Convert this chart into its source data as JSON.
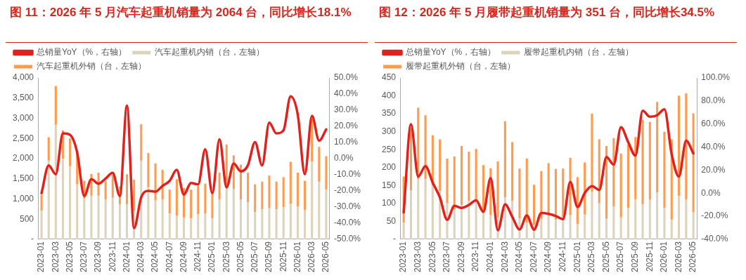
{
  "chart_data": [
    {
      "type": "bar",
      "title": "图 11：2026 年 5 月汽车起重机销量为 2064 台，同比增长18.1%",
      "stacked": true,
      "legend": "top",
      "grid": false,
      "marker": "none",
      "categories": [
        "2023-01",
        null,
        "2023-03",
        null,
        "2023-05",
        null,
        "2023-07",
        null,
        "2023-09",
        null,
        "2023-11",
        null,
        "2024-01",
        null,
        "2024-03",
        null,
        "2024-05",
        null,
        "2024-07",
        null,
        "2024-09",
        null,
        "2024-11",
        null,
        "2025-01",
        null,
        "2025-03",
        null,
        "2025-05",
        null,
        "2025-07",
        null,
        "2025-09",
        null,
        "2025-11",
        null,
        "2026-01",
        null,
        "2026-03",
        null,
        "2026-05"
      ],
      "ylim": [
        0,
        4000
      ],
      "yticks": [
        {
          "value": 0,
          "label": "-"
        },
        500,
        {
          "value": 1000,
          "label": "1,000"
        },
        {
          "value": 1500,
          "label": "1,500"
        },
        {
          "value": 2000,
          "label": "2,000"
        },
        {
          "value": 2500,
          "label": "2,500"
        },
        {
          "value": 3000,
          "label": "3,000"
        },
        {
          "value": 3500,
          "label": "3,500"
        },
        {
          "value": 4000,
          "label": "4,000"
        }
      ],
      "y2lim": [
        -50,
        50
      ],
      "y2ticks": [
        {
          "value": -50,
          "label": "-50.0%"
        },
        {
          "value": -40,
          "label": "-40.0%"
        },
        {
          "value": -30,
          "label": "-30.0%"
        },
        {
          "value": -20,
          "label": "-20.0%"
        },
        {
          "value": -10,
          "label": "-10.0%"
        },
        {
          "value": 0,
          "label": "0.0%"
        },
        {
          "value": 10,
          "label": "10.0%"
        },
        {
          "value": 20,
          "label": "20.0%"
        },
        {
          "value": 30,
          "label": "30.0%"
        },
        {
          "value": 40,
          "label": "40.0%"
        },
        {
          "value": 50,
          "label": "50.0%"
        }
      ],
      "series": [
        {
          "name": "汽车起重机内销（台，左轴）",
          "color": "#ddd3bd",
          "values": [
            710,
            1950,
            2840,
            1990,
            1810,
            1360,
            1000,
            1080,
            1080,
            980,
            1030,
            870,
            870,
            700,
            1950,
            1290,
            960,
            980,
            640,
            580,
            540,
            520,
            620,
            640,
            520,
            980,
            1270,
            1250,
            980,
            910,
            670,
            740,
            770,
            740,
            800,
            880,
            810,
            730,
            1920,
            1420,
            1230
          ]
        },
        {
          "name": "汽车起重机外销（台，左轴）",
          "color": "#ff9a4f",
          "values": [
            390,
            580,
            960,
            710,
            690,
            810,
            450,
            540,
            570,
            460,
            570,
            440,
            740,
            780,
            900,
            850,
            920,
            740,
            590,
            910,
            730,
            710,
            700,
            740,
            660,
            670,
            1080,
            830,
            870,
            740,
            690,
            690,
            810,
            690,
            740,
            1040,
            840,
            720,
            1080,
            870,
            830
          ]
        },
        {
          "name": "总销量YoY（%，右轴）",
          "type": "line",
          "axis": "y2",
          "color": "#e3211c",
          "values": [
            -21.4,
            -4.2,
            -9.7,
            15.6,
            14.7,
            3.9,
            -23.2,
            -12.7,
            -15.6,
            -12.4,
            -8.8,
            -23.2,
            32.8,
            -43.1,
            -24.1,
            -20,
            -20.5,
            -16.9,
            -13.8,
            -7,
            -22.3,
            -15.1,
            -16,
            5.7,
            -21.4,
            12,
            -17.8,
            -3,
            -7.9,
            -4.2,
            10.2,
            -4.2,
            22.3,
            15.6,
            17.5,
            38.6,
            27.4,
            -9.7,
            26.5,
            11.1,
            18.1
          ]
        }
      ]
    },
    {
      "type": "bar",
      "title": "图 12：2026 年 5 月履带起重机销量为 351 台，同比增长34.5%",
      "stacked": true,
      "legend": "top",
      "grid": false,
      "marker": "none",
      "categories": [
        "2023-01",
        null,
        "2023-03",
        null,
        "2023-05",
        null,
        "2023-07",
        null,
        "2023-09",
        null,
        "2023-11",
        null,
        "2024-01",
        null,
        "2024-03",
        null,
        "2024-05",
        null,
        "2024-07",
        null,
        "2024-09",
        null,
        "2024-11",
        null,
        "2025-01",
        null,
        "2025-03",
        null,
        "2025-05",
        null,
        "2025-07",
        null,
        "2025-09",
        null,
        "2025-11",
        null,
        "2026-01",
        null,
        "2026-03",
        null,
        "2026-05"
      ],
      "ylim": [
        0,
        450
      ],
      "yticks": [
        {
          "value": 0,
          "label": "-"
        },
        50,
        100,
        150,
        200,
        250,
        300,
        350,
        400,
        450
      ],
      "y2lim": [
        -40,
        100
      ],
      "y2ticks": [
        {
          "value": -40,
          "label": "-40.0%"
        },
        {
          "value": -20,
          "label": "-20.0%"
        },
        {
          "value": 0,
          "label": "0.0%"
        },
        {
          "value": 20,
          "label": "20.0%"
        },
        {
          "value": 40,
          "label": "40.0%"
        },
        {
          "value": 60,
          "label": "60.0%"
        },
        {
          "value": 80,
          "label": "80.0%"
        },
        {
          "value": 100,
          "label": "100.0%"
        }
      ],
      "series": [
        {
          "name": "履带起重机内销（台，左轴）",
          "color": "#ddd3bd",
          "values": [
            46,
            137,
            168,
            167,
            150,
            135,
            100,
            83,
            96,
            107,
            104,
            75,
            67,
            60,
            117,
            107,
            58,
            46,
            40,
            56,
            67,
            54,
            54,
            67,
            42,
            69,
            132,
            100,
            57,
            92,
            61,
            87,
            111,
            98,
            110,
            131,
            87,
            54,
            121,
            111,
            75
          ]
        },
        {
          "name": "履带起重机外销（台，左轴）",
          "color": "#ff9a4f",
          "values": [
            129,
            173,
            199,
            179,
            140,
            144,
            125,
            148,
            164,
            137,
            148,
            132,
            131,
            157,
            212,
            164,
            139,
            179,
            112,
            134,
            145,
            142,
            143,
            160,
            131,
            145,
            218,
            179,
            203,
            190,
            178,
            178,
            174,
            235,
            217,
            252,
            213,
            225,
            279,
            296,
            276
          ]
        },
        {
          "name": "总销量YoY（%，右轴）",
          "type": "line",
          "axis": "y2",
          "color": "#e3211c",
          "values": [
            -16.7,
            59.8,
            14.4,
            23.5,
            9.2,
            -3.7,
            -23.2,
            -11,
            -12.8,
            -10.2,
            -6.3,
            -16.2,
            13.1,
            -32.2,
            -9.7,
            -20.6,
            -31.5,
            -19.3,
            -31.7,
            -17.2,
            -18,
            -19.8,
            -22.6,
            9.8,
            -12,
            0.2,
            6.1,
            2.8,
            31.3,
            24.8,
            57.2,
            44.3,
            32.6,
            71.5,
            66.3,
            67.6,
            72.8,
            33.9,
            14.4,
            45.5,
            34.5
          ]
        }
      ]
    }
  ]
}
